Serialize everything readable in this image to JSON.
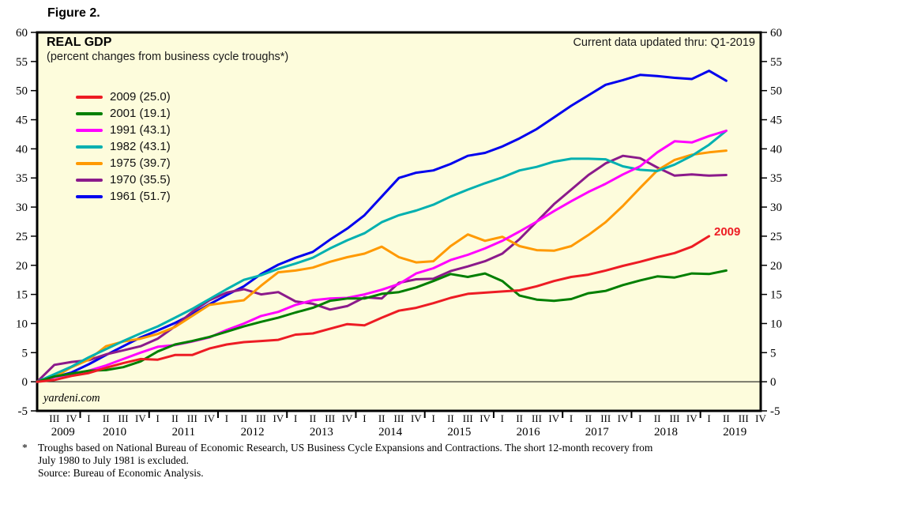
{
  "figure_label": "Figure 2.",
  "chart": {
    "title": "REAL GDP",
    "subtitle": "(percent changes from business cycle troughs*)",
    "updated_note": "Current data updated thru: Q1-2019",
    "watermark": "yardeni.com",
    "end_label": "2009",
    "colors": {
      "plot_background": "#fdfcdc",
      "frame": "#000000",
      "end_label_color": "#ed1c24"
    }
  },
  "footnote": {
    "marker": "*",
    "line1": "Troughs based on National Bureau of Economic Research, US Business Cycle Expansions and Contractions. The short 12-month recovery from",
    "line2": "July 1980 to July 1981 is excluded.",
    "line3": "Source: Bureau of Economic Analysis."
  },
  "chart_data": {
    "type": "line",
    "title": "REAL GDP",
    "subtitle": "(percent changes from business cycle troughs*)",
    "xlabel": "quarters since business cycle trough (labeled as calendar quarters of current expansion)",
    "ylabel": "percent change from trough",
    "ylim": [
      -5,
      60
    ],
    "ytick_step": 5,
    "y_ticks": [
      60,
      55,
      50,
      45,
      40,
      35,
      30,
      25,
      20,
      15,
      10,
      5,
      0,
      -5
    ],
    "grid": false,
    "legend_position": "top-left",
    "x_axis": {
      "quarter_labels": [
        "III",
        "IV",
        "I",
        "II",
        "III",
        "IV",
        "I",
        "II",
        "III",
        "IV",
        "I",
        "II",
        "III",
        "IV",
        "I",
        "II",
        "III",
        "IV",
        "I",
        "II",
        "III",
        "IV",
        "I",
        "II",
        "III",
        "IV",
        "I",
        "II",
        "III",
        "IV",
        "I",
        "II",
        "III",
        "IV",
        "I",
        "II",
        "III",
        "IV",
        "I",
        "II",
        "III",
        "IV"
      ],
      "year_labels": [
        {
          "label": "2009",
          "p": 1.5
        },
        {
          "label": "2010",
          "p": 4.5
        },
        {
          "label": "2011",
          "p": 8.5
        },
        {
          "label": "2012",
          "p": 12.5
        },
        {
          "label": "2013",
          "p": 16.5
        },
        {
          "label": "2014",
          "p": 20.5
        },
        {
          "label": "2015",
          "p": 24.5
        },
        {
          "label": "2016",
          "p": 28.5
        },
        {
          "label": "2017",
          "p": 32.5
        },
        {
          "label": "2018",
          "p": 36.5
        },
        {
          "label": "2019",
          "p": 40.5
        }
      ],
      "year_tick_positions": [
        2.5,
        6.5,
        10.5,
        14.5,
        18.5,
        22.5,
        26.5,
        30.5,
        34.5,
        38.5
      ]
    },
    "series": [
      {
        "name": "2009",
        "legend_label": "2009 (25.0)",
        "final_value": 25.0,
        "color": "#ed1c24",
        "values": [
          0,
          0.3,
          1.0,
          1.5,
          2.4,
          3.2,
          3.9,
          3.8,
          4.6,
          4.6,
          5.7,
          6.4,
          6.8,
          7.0,
          7.2,
          8.1,
          8.3,
          9.1,
          9.9,
          9.7,
          11.0,
          12.2,
          12.7,
          13.5,
          14.4,
          15.1,
          15.3,
          15.5,
          15.7,
          16.4,
          17.3,
          18.0,
          18.4,
          19.1,
          19.9,
          20.6,
          21.4,
          22.1,
          23.2,
          25.0
        ]
      },
      {
        "name": "2001",
        "legend_label": "2001 (19.1)",
        "final_value": 19.1,
        "color": "#007f00",
        "values": [
          0,
          0.9,
          1.4,
          1.9,
          2.0,
          2.5,
          3.5,
          5.2,
          6.4,
          7.0,
          7.7,
          8.6,
          9.5,
          10.3,
          11.0,
          11.9,
          12.7,
          13.9,
          14.3,
          14.3,
          15.1,
          15.4,
          16.2,
          17.3,
          18.5,
          18.0,
          18.6,
          17.3,
          14.8,
          14.1,
          13.9,
          14.2,
          15.2,
          15.6,
          16.6,
          17.4,
          18.1,
          17.9,
          18.6,
          18.5,
          19.1
        ]
      },
      {
        "name": "1991",
        "legend_label": "1991 (43.1)",
        "final_value": 43.1,
        "color": "#ff00ff",
        "values": [
          0,
          0.8,
          1.3,
          1.9,
          2.8,
          3.9,
          5.0,
          6.0,
          6.3,
          6.9,
          7.6,
          8.9,
          10.0,
          11.3,
          12.0,
          13.2,
          14.0,
          14.3,
          14.4,
          15.0,
          15.8,
          16.8,
          18.6,
          19.5,
          20.9,
          21.8,
          22.9,
          24.2,
          25.8,
          27.5,
          29.3,
          31.0,
          32.6,
          34.0,
          35.6,
          37.0,
          39.4,
          41.3,
          41.1,
          42.2,
          43.1
        ]
      },
      {
        "name": "1982",
        "legend_label": "1982 (43.1)",
        "final_value": 43.1,
        "color": "#00b0b0",
        "values": [
          0,
          1.3,
          2.6,
          4.2,
          5.6,
          7.0,
          8.3,
          9.5,
          11.0,
          12.5,
          14.2,
          15.9,
          17.5,
          18.3,
          19.4,
          20.3,
          21.3,
          22.9,
          24.3,
          25.5,
          27.4,
          28.6,
          29.4,
          30.4,
          31.8,
          33.0,
          34.1,
          35.1,
          36.3,
          36.9,
          37.8,
          38.3,
          38.3,
          38.2,
          37.0,
          36.4,
          36.2,
          37.3,
          38.8,
          40.7,
          43.1
        ]
      },
      {
        "name": "1975",
        "legend_label": "1975 (39.7)",
        "final_value": 39.7,
        "color": "#ff9900",
        "values": [
          0,
          0.8,
          2.5,
          3.8,
          6.1,
          6.9,
          7.4,
          8.2,
          9.4,
          11.3,
          13.2,
          13.6,
          14.0,
          16.5,
          18.8,
          19.1,
          19.6,
          20.6,
          21.4,
          22.0,
          23.2,
          21.4,
          20.5,
          20.7,
          23.3,
          25.3,
          24.2,
          24.9,
          23.3,
          22.6,
          22.5,
          23.3,
          25.2,
          27.4,
          30.2,
          33.3,
          36.3,
          38.1,
          39.0,
          39.4,
          39.7
        ]
      },
      {
        "name": "1970",
        "legend_label": "1970 (35.5)",
        "final_value": 35.5,
        "color": "#8b1a8b",
        "values": [
          0,
          2.9,
          3.4,
          3.7,
          4.7,
          5.4,
          6.1,
          7.4,
          9.5,
          12.0,
          14.0,
          15.3,
          15.9,
          15.0,
          15.4,
          13.8,
          13.4,
          12.4,
          13.0,
          14.5,
          14.3,
          17.0,
          17.6,
          17.7,
          19.0,
          19.8,
          20.7,
          22.0,
          24.5,
          27.5,
          30.5,
          33.0,
          35.5,
          37.5,
          38.8,
          38.4,
          36.8,
          35.4,
          35.6,
          35.4,
          35.5
        ]
      },
      {
        "name": "1961",
        "legend_label": "1961 (51.7)",
        "final_value": 51.7,
        "color": "#0000ee",
        "values": [
          0,
          0.8,
          1.6,
          3.0,
          4.6,
          6.1,
          7.6,
          8.8,
          10.1,
          11.6,
          13.3,
          14.9,
          16.4,
          18.5,
          20.1,
          21.3,
          22.3,
          24.4,
          26.3,
          28.6,
          31.8,
          35.0,
          35.9,
          36.3,
          37.4,
          38.8,
          39.3,
          40.4,
          41.8,
          43.4,
          45.4,
          47.4,
          49.2,
          51.0,
          51.8,
          52.7,
          52.5,
          52.2,
          52.0,
          53.4,
          51.7
        ]
      }
    ]
  }
}
